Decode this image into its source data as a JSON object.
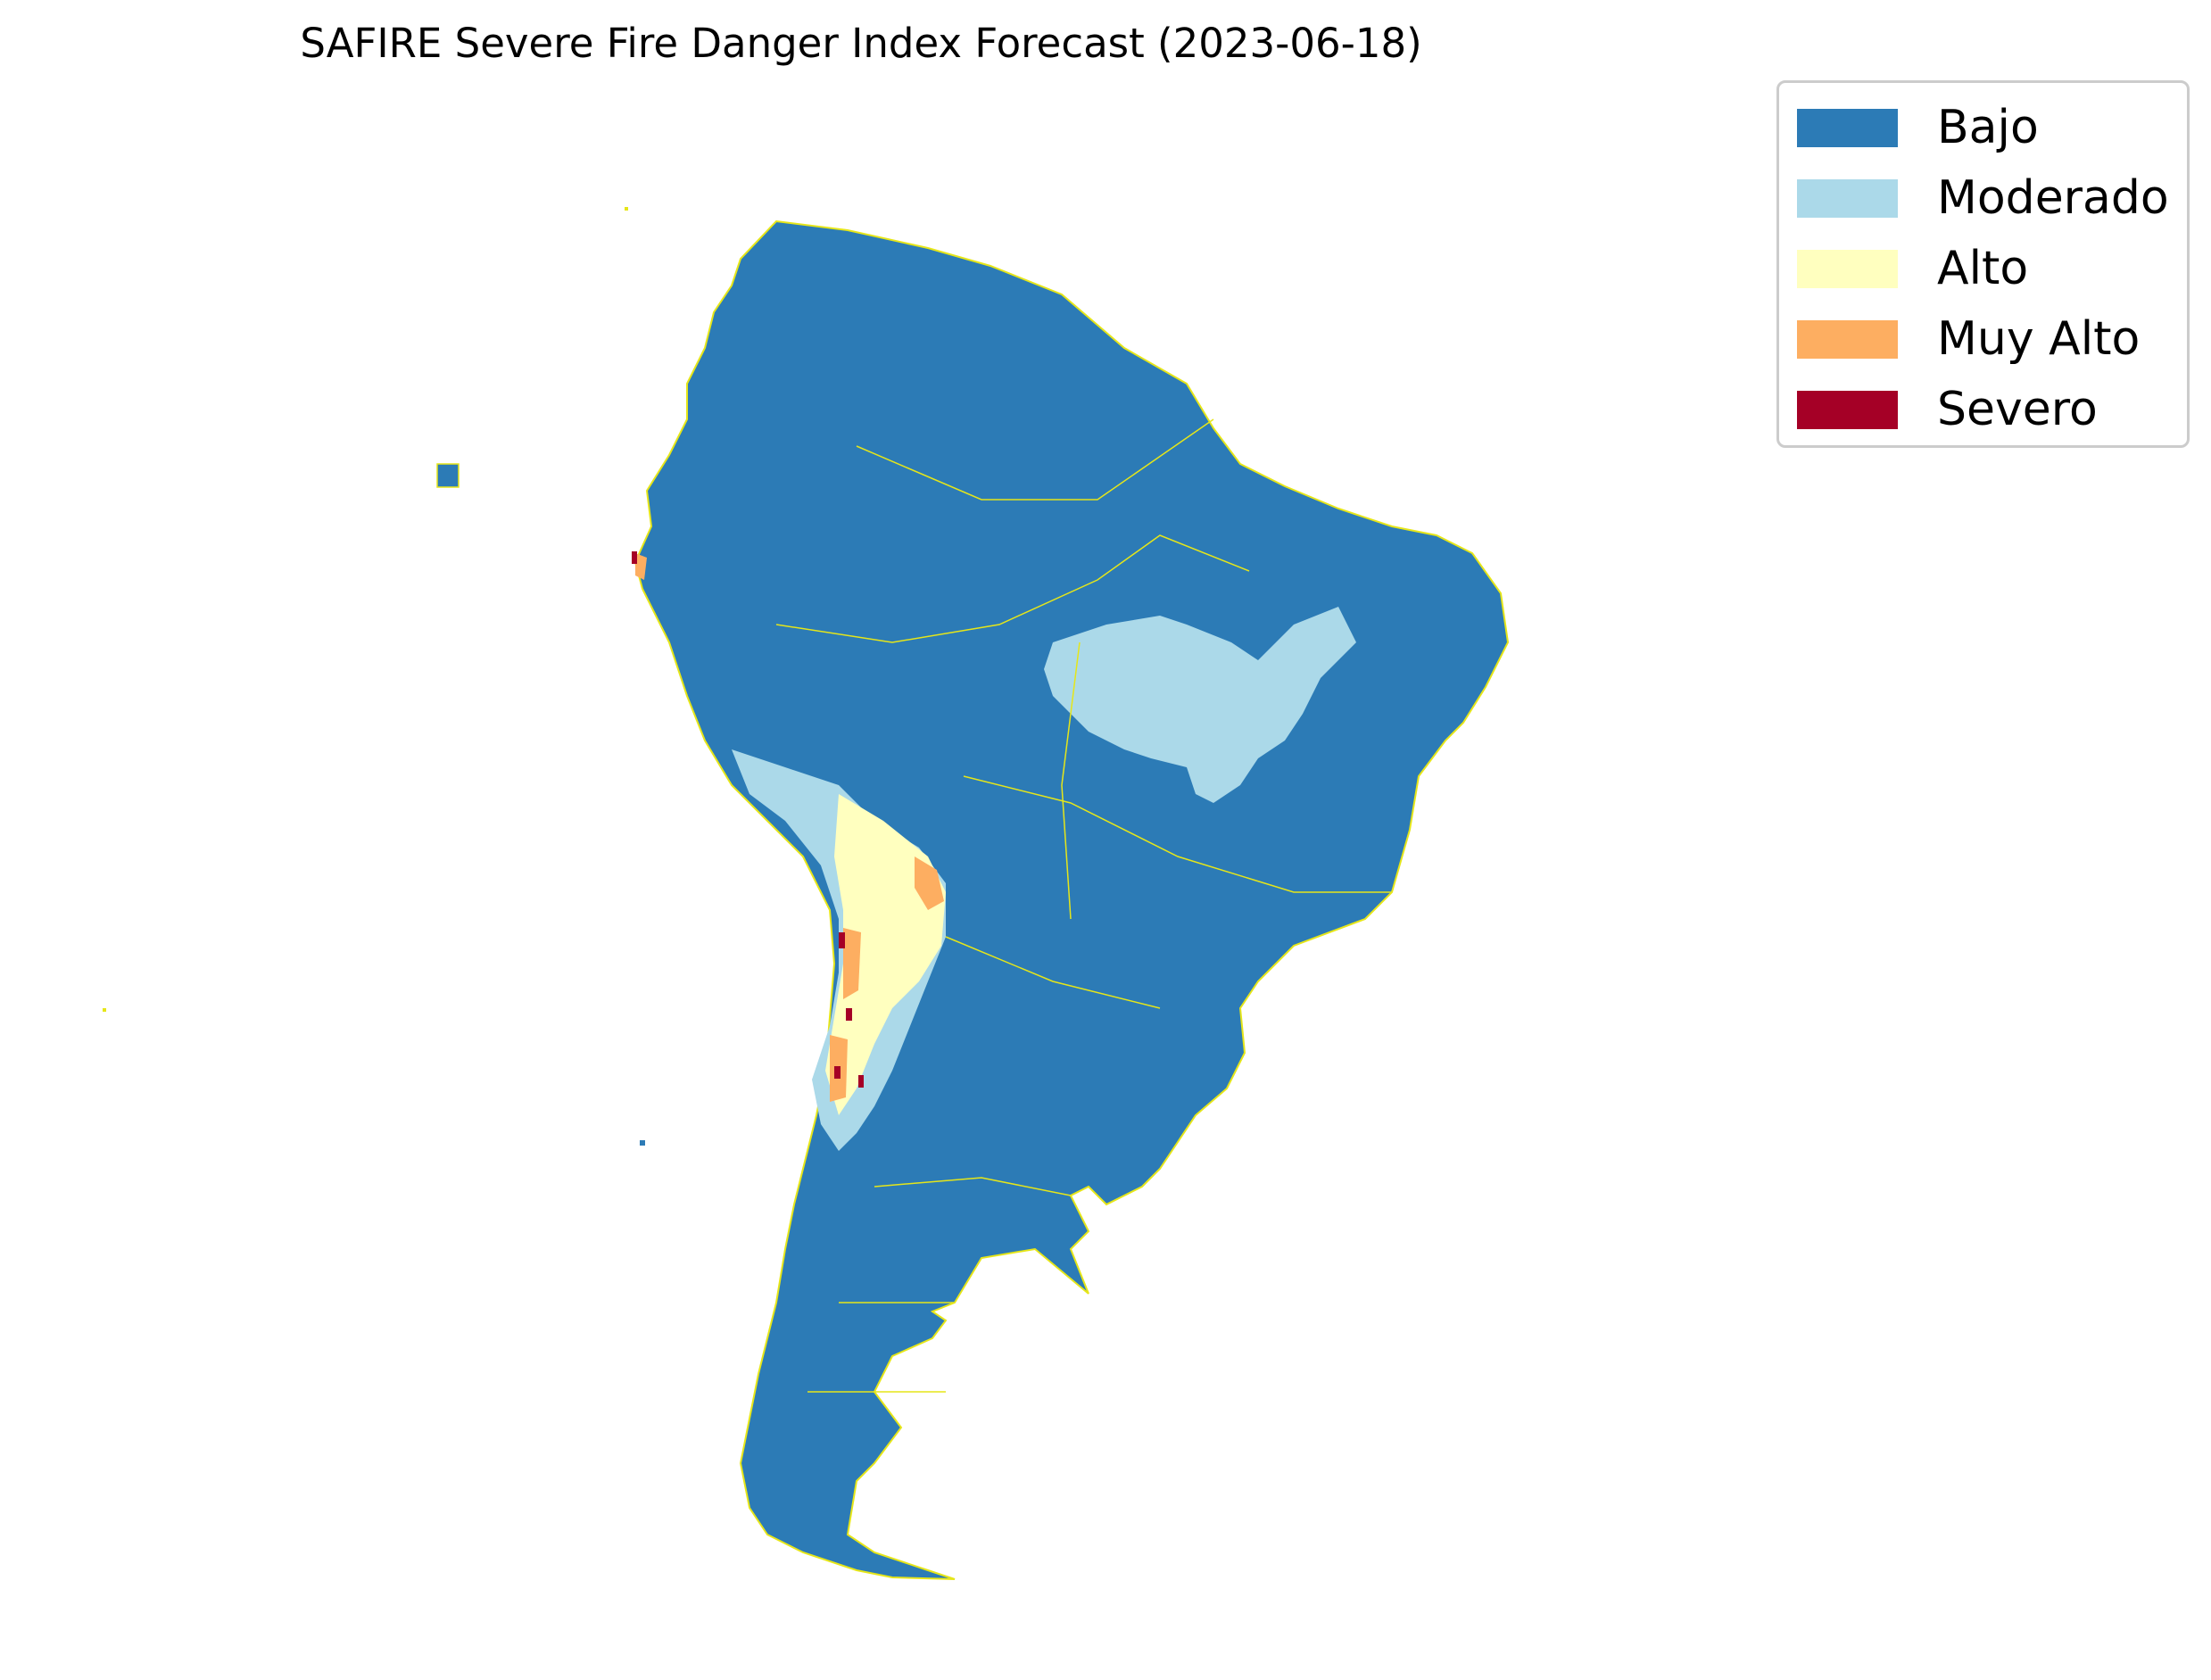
{
  "title": "SAFIRE Severe Fire Danger Index Forecast (2023-06-18)",
  "legend": {
    "placement": "upper-right",
    "items": [
      {
        "label": "Bajo",
        "color": "#2c7bb6"
      },
      {
        "label": "Moderado",
        "color": "#abd9e9"
      },
      {
        "label": "Alto",
        "color": "#ffffbf"
      },
      {
        "label": "Muy Alto",
        "color": "#fdae61"
      },
      {
        "label": "Severo",
        "color": "#a50026"
      }
    ]
  },
  "map": {
    "region": "South America",
    "boundary_color": "#e6e619",
    "background": "#ffffff"
  }
}
